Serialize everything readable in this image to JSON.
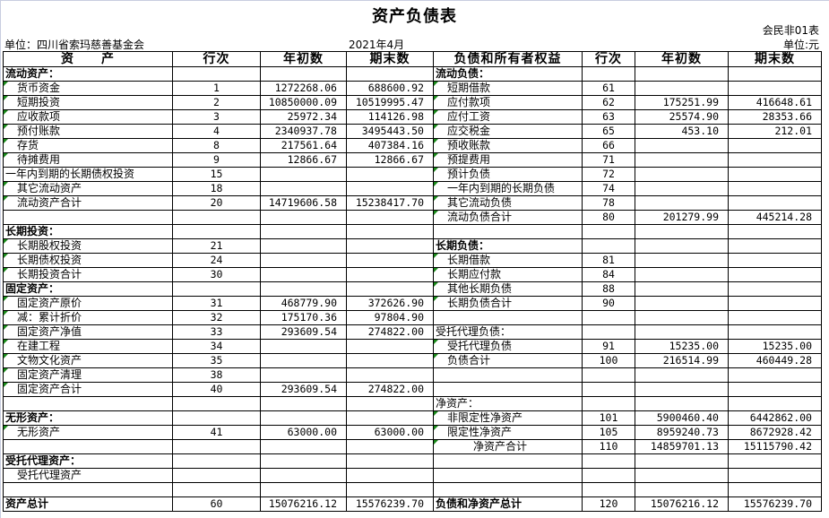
{
  "title": "资产负债表",
  "form_no": "会民非01表",
  "unit_org": "单位：四川省索玛慈善基金会",
  "period": "2021年4月",
  "unit_currency": "单位:元",
  "headers": {
    "assets": "资　　产",
    "line": "行次",
    "begin": "年初数",
    "end": "期末数",
    "liabilities": "负债和所有者权益",
    "line2": "行次",
    "begin2": "年初数",
    "end2": "期末数"
  },
  "colors": {
    "error_indicator": "#1a8a1a",
    "grid": "#000000"
  },
  "left_rows": [
    {
      "name": "流动资产：",
      "line": "",
      "begin": "",
      "end": "",
      "kind": "section"
    },
    {
      "name": "货币资金",
      "line": "1",
      "begin": "1272268.06",
      "end": "688600.92",
      "kind": "item"
    },
    {
      "name": "短期投资",
      "line": "2",
      "begin": "10850000.09",
      "end": "10519995.47",
      "kind": "item"
    },
    {
      "name": "应收款项",
      "line": "3",
      "begin": "25972.34",
      "end": "114126.98",
      "kind": "item"
    },
    {
      "name": "预付账款",
      "line": "4",
      "begin": "2340937.78",
      "end": "3495443.50",
      "kind": "item"
    },
    {
      "name": "存货",
      "line": "8",
      "begin": "217561.64",
      "end": "407384.16",
      "kind": "item"
    },
    {
      "name": "待摊费用",
      "line": "9",
      "begin": "12866.67",
      "end": "12866.67",
      "kind": "item"
    },
    {
      "name": "一年内到期的长期债权投资",
      "line": "15",
      "begin": "",
      "end": "",
      "kind": "plain"
    },
    {
      "name": "其它流动资产",
      "line": "18",
      "begin": "",
      "end": "",
      "kind": "item"
    },
    {
      "name": "流动资产合计",
      "line": "20",
      "begin": "14719606.58",
      "end": "15238417.70",
      "kind": "item"
    },
    {
      "name": "",
      "line": "",
      "begin": "",
      "end": "",
      "kind": "blank"
    },
    {
      "name": "长期投资：",
      "line": "",
      "begin": "",
      "end": "",
      "kind": "section"
    },
    {
      "name": "长期股权投资",
      "line": "21",
      "begin": "",
      "end": "",
      "kind": "item"
    },
    {
      "name": "长期债权投资",
      "line": "24",
      "begin": "",
      "end": "",
      "kind": "item"
    },
    {
      "name": "长期投资合计",
      "line": "30",
      "begin": "",
      "end": "",
      "kind": "item"
    },
    {
      "name": "固定资产：",
      "line": "",
      "begin": "",
      "end": "",
      "kind": "section"
    },
    {
      "name": "固定资产原价",
      "line": "31",
      "begin": "468779.90",
      "end": "372626.90",
      "kind": "item"
    },
    {
      "name": " 减：累计折价",
      "line": "32",
      "begin": "175170.36",
      "end": "97804.90",
      "kind": "item"
    },
    {
      "name": "固定资产净值",
      "line": "33",
      "begin": "293609.54",
      "end": "274822.00",
      "kind": "item"
    },
    {
      "name": "在建工程",
      "line": "34",
      "begin": "",
      "end": "",
      "kind": "item"
    },
    {
      "name": "文物文化资产",
      "line": "35",
      "begin": "",
      "end": "",
      "kind": "item"
    },
    {
      "name": "固定资产清理",
      "line": "38",
      "begin": "",
      "end": "",
      "kind": "item"
    },
    {
      "name": "固定资产合计",
      "line": "40",
      "begin": "293609.54",
      "end": "274822.00",
      "kind": "item"
    },
    {
      "name": "",
      "line": "",
      "begin": "",
      "end": "",
      "kind": "blank"
    },
    {
      "name": "无形资产：",
      "line": "",
      "begin": "",
      "end": "",
      "kind": "section"
    },
    {
      "name": "无形资产",
      "line": "41",
      "begin": "63000.00",
      "end": "63000.00",
      "kind": "item"
    },
    {
      "name": "",
      "line": "",
      "begin": "",
      "end": "",
      "kind": "blank"
    },
    {
      "name": "受托代理资产：",
      "line": "",
      "begin": "",
      "end": "",
      "kind": "section"
    },
    {
      "name": "受托代理资产",
      "line": "",
      "begin": "",
      "end": "",
      "kind": "item-noflag"
    },
    {
      "name": "",
      "line": "",
      "begin": "",
      "end": "",
      "kind": "blank"
    },
    {
      "name": "资产总计",
      "line": "60",
      "begin": "15076216.12",
      "end": "15576239.70",
      "kind": "total"
    }
  ],
  "right_rows": [
    {
      "name": "流动负债：",
      "line": "",
      "begin": "",
      "end": "",
      "kind": "section"
    },
    {
      "name": "短期借款",
      "line": "61",
      "begin": "",
      "end": "",
      "kind": "item"
    },
    {
      "name": "应付款项",
      "line": "62",
      "begin": "175251.99",
      "end": "416648.61",
      "kind": "item"
    },
    {
      "name": "应付工资",
      "line": "63",
      "begin": "25574.90",
      "end": "28353.66",
      "kind": "item"
    },
    {
      "name": "应交税金",
      "line": "65",
      "begin": "453.10",
      "end": "212.01",
      "kind": "item"
    },
    {
      "name": "预收账款",
      "line": "66",
      "begin": "",
      "end": "",
      "kind": "item"
    },
    {
      "name": "预提费用",
      "line": "71",
      "begin": "",
      "end": "",
      "kind": "item"
    },
    {
      "name": "预计负债",
      "line": "72",
      "begin": "",
      "end": "",
      "kind": "item"
    },
    {
      "name": "一年内到期的长期负债",
      "line": "74",
      "begin": "",
      "end": "",
      "kind": "item"
    },
    {
      "name": "其它流动负债",
      "line": "78",
      "begin": "",
      "end": "",
      "kind": "item"
    },
    {
      "name": "流动负债合计",
      "line": "80",
      "begin": "201279.99",
      "end": "445214.28",
      "kind": "item"
    },
    {
      "name": "",
      "line": "",
      "begin": "",
      "end": "",
      "kind": "blank"
    },
    {
      "name": "长期负债：",
      "line": "",
      "begin": "",
      "end": "",
      "kind": "section"
    },
    {
      "name": "长期借款",
      "line": "81",
      "begin": "",
      "end": "",
      "kind": "item"
    },
    {
      "name": "长期应付款",
      "line": "84",
      "begin": "",
      "end": "",
      "kind": "item"
    },
    {
      "name": "其他长期负债",
      "line": "88",
      "begin": "",
      "end": "",
      "kind": "item"
    },
    {
      "name": "长期负债合计",
      "line": "90",
      "begin": "",
      "end": "",
      "kind": "item"
    },
    {
      "name": "",
      "line": "",
      "begin": "",
      "end": "",
      "kind": "blank"
    },
    {
      "name": "受托代理负债：",
      "line": "",
      "begin": "",
      "end": "",
      "kind": "plain"
    },
    {
      "name": "受托代理负债",
      "line": "91",
      "begin": "15235.00",
      "end": "15235.00",
      "kind": "item"
    },
    {
      "name": "负债合计",
      "line": "100",
      "begin": "216514.99",
      "end": "460449.28",
      "kind": "item"
    },
    {
      "name": "",
      "line": "",
      "begin": "",
      "end": "",
      "kind": "blank"
    },
    {
      "name": "",
      "line": "",
      "begin": "",
      "end": "",
      "kind": "blank"
    },
    {
      "name": "净资产：",
      "line": "",
      "begin": "",
      "end": "",
      "kind": "plain"
    },
    {
      "name": "非限定性净资产",
      "line": "101",
      "begin": "5900460.40",
      "end": "6442862.00",
      "kind": "item"
    },
    {
      "name": "限定性净资产",
      "line": "105",
      "begin": "8959240.73",
      "end": "8672928.42",
      "kind": "item"
    },
    {
      "name": "净资产合计",
      "line": "110",
      "begin": "14859701.13",
      "end": "15115790.42",
      "kind": "sum2"
    },
    {
      "name": "",
      "line": "",
      "begin": "",
      "end": "",
      "kind": "blank"
    },
    {
      "name": "",
      "line": "",
      "begin": "",
      "end": "",
      "kind": "blank"
    },
    {
      "name": "",
      "line": "",
      "begin": "",
      "end": "",
      "kind": "blank"
    },
    {
      "name": "负债和净资产总计",
      "line": "120",
      "begin": "15076216.12",
      "end": "15576239.70",
      "kind": "total"
    }
  ]
}
